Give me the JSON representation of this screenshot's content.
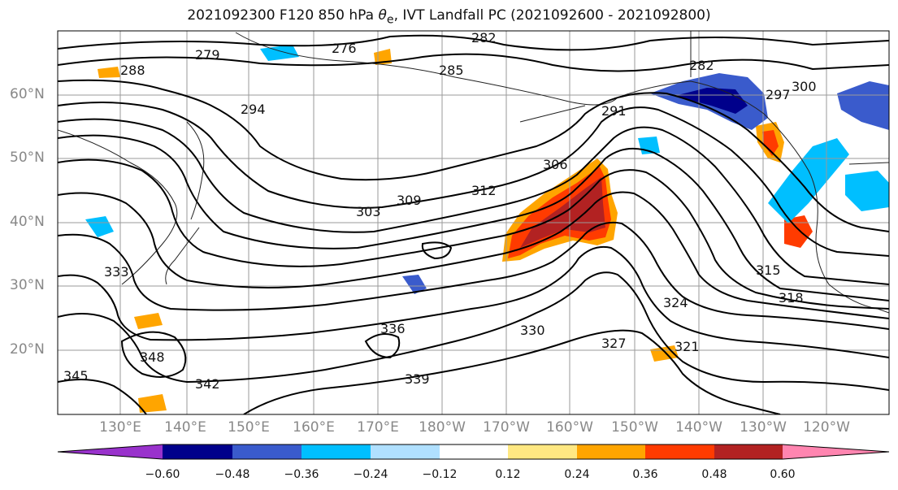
{
  "title": {
    "prefix": "2021092300 F120 850 hPa ",
    "theta": "θ",
    "sub": "e",
    "suffix": ", IVT Landfall PC (2021092600 - 2021092800)"
  },
  "map": {
    "lat_labels": [
      "60°N",
      "50°N",
      "40°N",
      "30°N",
      "20°N"
    ],
    "lon_labels": [
      "130°E",
      "140°E",
      "150°E",
      "160°E",
      "170°E",
      "180°W",
      "170°W",
      "160°W",
      "150°W",
      "140°W",
      "130°W",
      "120°W"
    ],
    "contour_labels": [
      "288",
      "279",
      "276",
      "282",
      "285",
      "282",
      "294",
      "297",
      "300",
      "291",
      "306",
      "303",
      "309",
      "312",
      "315",
      "318",
      "321",
      "324",
      "327",
      "330",
      "333",
      "336",
      "339",
      "342",
      "345",
      "348"
    ]
  },
  "colorbar": {
    "tick_labels": [
      "−0.60",
      "−0.48",
      "−0.36",
      "−0.24",
      "−0.12",
      "0.12",
      "0.24",
      "0.36",
      "0.48",
      "0.60"
    ],
    "colors": [
      "#9932cc",
      "#00008b",
      "#3a5bcc",
      "#00bfff",
      "#b0e0ff",
      "#ffffff",
      "#ffe882",
      "#ffa500",
      "#ff3b00",
      "#b22222",
      "#ff85b0"
    ]
  }
}
